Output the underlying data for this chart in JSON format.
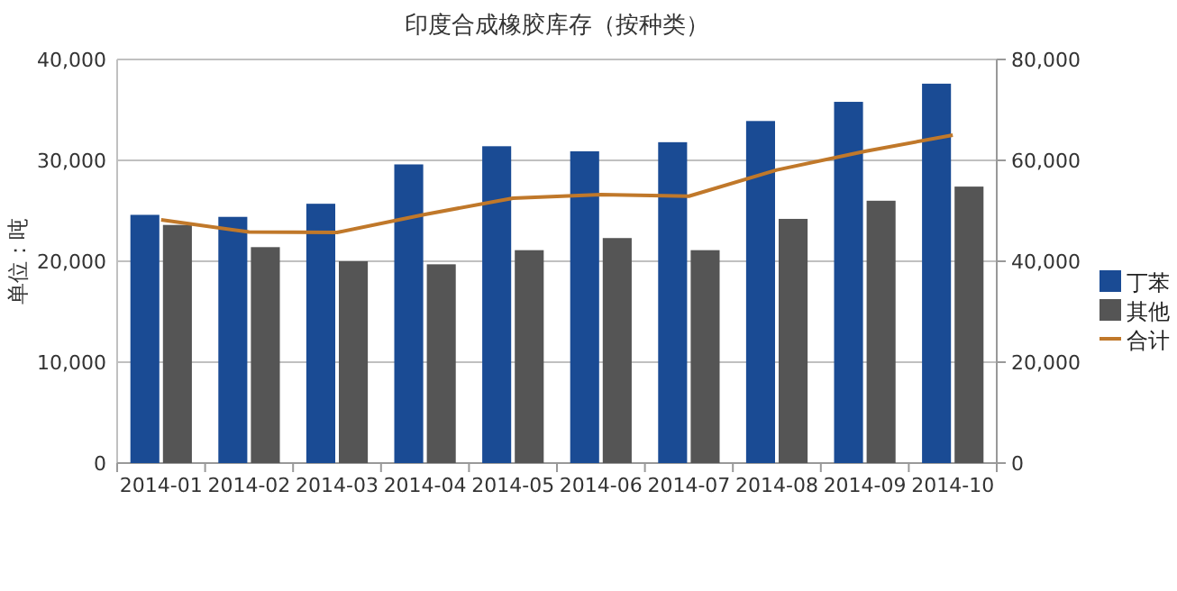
{
  "chart_data": {
    "type": "bar",
    "title": "印度合成橡胶库存（按种类）",
    "ylabel": "单位：吨",
    "categories": [
      "2014-01",
      "2014-02",
      "2014-03",
      "2014-04",
      "2014-05",
      "2014-06",
      "2014-07",
      "2014-08",
      "2014-09",
      "2014-10"
    ],
    "series": [
      {
        "name": "丁苯",
        "color": "#1a4b94",
        "values": [
          24600,
          24400,
          25700,
          29600,
          31400,
          30900,
          31800,
          33900,
          35800,
          37600
        ]
      },
      {
        "name": "其他",
        "color": "#555555",
        "values": [
          23600,
          21400,
          20000,
          19700,
          21100,
          22300,
          21100,
          24200,
          26000,
          27400
        ]
      },
      {
        "name": "合计",
        "type": "line",
        "axis": "y2",
        "color": "#c0782a",
        "values": [
          48200,
          45800,
          45700,
          49300,
          52500,
          53200,
          52900,
          58100,
          61800,
          65000
        ]
      }
    ],
    "ylim": [
      0,
      40000
    ],
    "yticks": [
      {
        "value": 0,
        "label": "0"
      },
      {
        "value": 10000,
        "label": "10,000"
      },
      {
        "value": 20000,
        "label": "20,000"
      },
      {
        "value": 30000,
        "label": "30,000"
      },
      {
        "value": 40000,
        "label": "40,000"
      }
    ],
    "y2lim": [
      0,
      80000
    ],
    "y2ticks": [
      {
        "value": 0,
        "label": "0"
      },
      {
        "value": 20000,
        "label": "20,000"
      },
      {
        "value": 40000,
        "label": "40,000"
      },
      {
        "value": 60000,
        "label": "60,000"
      },
      {
        "value": 80000,
        "label": "80,000"
      }
    ],
    "grid": "y",
    "legend": "right"
  }
}
